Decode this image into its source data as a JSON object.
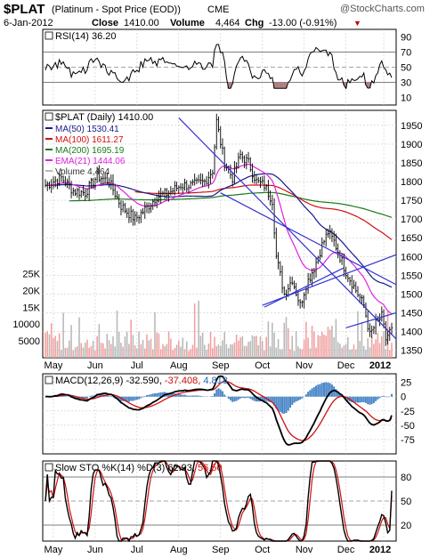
{
  "header": {
    "symbol": "$PLAT",
    "name": "(Platinum  - Spot Price (EOD))",
    "exchange": "CME",
    "watermark": "@StockCharts.com",
    "date": "6-Jan-2012",
    "close_label": "Close",
    "close_value": "1410.00",
    "volume_label": "Volume",
    "volume_value": "4,464",
    "chg_label": "Chg",
    "chg_value": "-13.00 (-0.91%)",
    "chg_arrow": "▼"
  },
  "colors": {
    "price": "#000000",
    "ma50": "#1a1a8c",
    "ma100": "#d01010",
    "ma200": "#1a7a1a",
    "ema21": "#e020e0",
    "trendline": "#3030d0",
    "volume_up": "#f0a0a0",
    "volume_down": "#b8b8b8",
    "macd_hist": "#4a86c8",
    "grid": "#cccccc"
  },
  "x_axis": {
    "months": [
      "May",
      "Jun",
      "Jul",
      "Aug",
      "Sep",
      "Oct",
      "Nov",
      "Dec",
      "2012"
    ]
  },
  "rsi_panel": {
    "title": "RSI(14) 36.20",
    "ticks": [
      "90",
      "70",
      "50",
      "30",
      "10"
    ]
  },
  "price_panel": {
    "title": "$PLAT (Daily) 1410.00",
    "legend": [
      {
        "label": "MA(50) 1530.41",
        "color": "#1a1a8c"
      },
      {
        "label": "MA(100) 1611.27",
        "color": "#d01010"
      },
      {
        "label": "MA(200) 1695.19",
        "color": "#1a7a1a"
      },
      {
        "label": "EMA(21) 1444.06",
        "color": "#e020e0"
      },
      {
        "label": "Volume 4,464",
        "color": "#b8b8b8"
      }
    ],
    "price_ticks": [
      "1950",
      "1900",
      "1850",
      "1800",
      "1750",
      "1700",
      "1650",
      "1600",
      "1550",
      "1500",
      "1450",
      "1400",
      "1350"
    ],
    "volume_ticks": [
      "25K",
      "20K",
      "15K",
      "10000",
      "5000"
    ]
  },
  "macd_panel": {
    "title_prefix": "MACD(12,26,9) -32.590,",
    "title_signal": "-37.408,",
    "title_hist": "4.818",
    "ticks": [
      "25",
      "0",
      "-25",
      "-50",
      "-75"
    ]
  },
  "sto_panel": {
    "title_prefix": "Slow STO %K(14) %D(3) 62.93,",
    "title_d": "56.50",
    "ticks": [
      "80",
      "50",
      "20"
    ]
  },
  "chart_data": [
    {
      "type": "line",
      "title": "RSI(14)",
      "ylim": [
        0,
        100
      ],
      "reference_lines": [
        70,
        50,
        30
      ],
      "last_value": 36.2
    },
    {
      "type": "line",
      "title": "$PLAT (Daily)",
      "ylim": [
        1330,
        1990
      ],
      "series": [
        {
          "name": "$PLAT",
          "x": [
            "May",
            "Jun",
            "Jul",
            "Aug",
            "Sep",
            "Oct",
            "Nov",
            "Dec",
            "2012"
          ],
          "values": [
            1790,
            1810,
            1720,
            1800,
            1830,
            1550,
            1640,
            1490,
            1410
          ]
        },
        {
          "name": "MA(50)",
          "last_value": 1530.41
        },
        {
          "name": "MA(100)",
          "last_value": 1611.27
        },
        {
          "name": "MA(200)",
          "last_value": 1695.19
        },
        {
          "name": "EMA(21)",
          "last_value": 1444.06
        }
      ],
      "trendlines": [
        {
          "from": [
            "Aug",
            1970
          ],
          "to": [
            "2012",
            1380
          ]
        },
        {
          "from": [
            "Sep",
            1770
          ],
          "to": [
            "2012",
            1525
          ]
        },
        {
          "from": [
            "Oct",
            1470
          ],
          "to": [
            "2012",
            1605
          ]
        },
        {
          "from": [
            "Dec",
            1410
          ],
          "to": [
            "2012",
            1450
          ]
        }
      ],
      "high": 1960,
      "low": 1365
    },
    {
      "type": "bar",
      "title": "Volume",
      "last_value": 4464,
      "ylim": [
        0,
        27000
      ]
    },
    {
      "type": "line",
      "title": "MACD(12,26,9)",
      "ylim": [
        -100,
        40
      ],
      "series": [
        {
          "name": "MACD",
          "last_value": -32.59
        },
        {
          "name": "Signal",
          "last_value": -37.408
        },
        {
          "name": "Histogram",
          "last_value": 4.818
        }
      ]
    },
    {
      "type": "line",
      "title": "Slow STO %K(14) %D(3)",
      "ylim": [
        0,
        100
      ],
      "reference_lines": [
        80,
        50,
        20
      ],
      "series": [
        {
          "name": "%K",
          "last_value": 62.93
        },
        {
          "name": "%D",
          "last_value": 56.5
        }
      ]
    }
  ]
}
